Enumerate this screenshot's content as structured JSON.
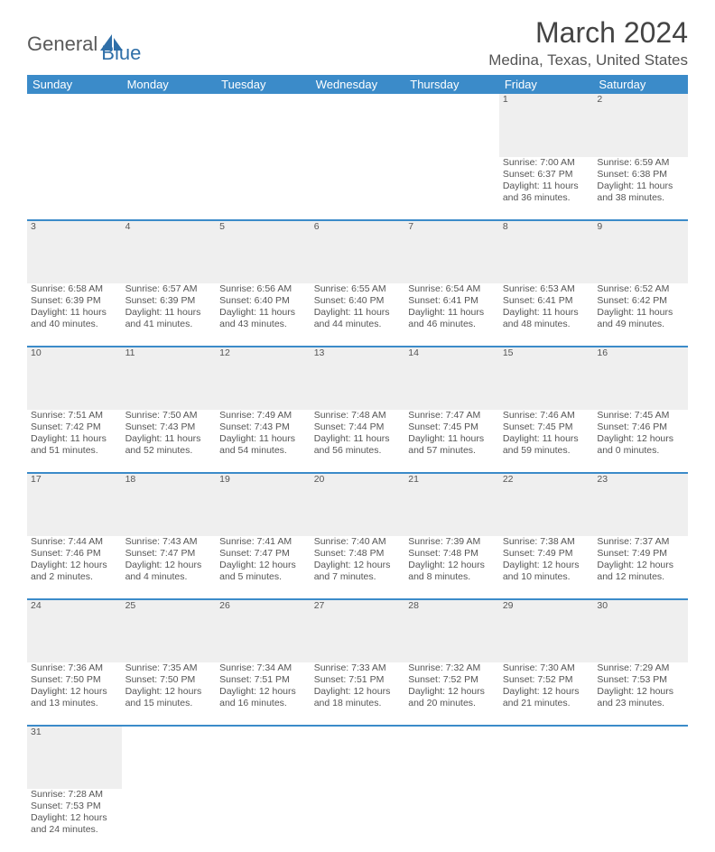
{
  "logo": {
    "text1": "General",
    "text2": "Blue"
  },
  "title": "March 2024",
  "location": "Medina, Texas, United States",
  "colors": {
    "header_bg": "#3b8bc9",
    "header_text": "#ffffff",
    "daynum_bg": "#efefef",
    "row_border": "#3b8bc9",
    "body_text": "#555555",
    "logo_gray": "#5a5a5a",
    "logo_blue": "#2f6fa8",
    "page_bg": "#ffffff"
  },
  "day_headers": [
    "Sunday",
    "Monday",
    "Tuesday",
    "Wednesday",
    "Thursday",
    "Friday",
    "Saturday"
  ],
  "weeks": [
    {
      "nums": [
        "",
        "",
        "",
        "",
        "",
        "1",
        "2"
      ],
      "cells": [
        [],
        [],
        [],
        [],
        [],
        [
          "Sunrise: 7:00 AM",
          "Sunset: 6:37 PM",
          "Daylight: 11 hours",
          "and 36 minutes."
        ],
        [
          "Sunrise: 6:59 AM",
          "Sunset: 6:38 PM",
          "Daylight: 11 hours",
          "and 38 minutes."
        ]
      ]
    },
    {
      "nums": [
        "3",
        "4",
        "5",
        "6",
        "7",
        "8",
        "9"
      ],
      "cells": [
        [
          "Sunrise: 6:58 AM",
          "Sunset: 6:39 PM",
          "Daylight: 11 hours",
          "and 40 minutes."
        ],
        [
          "Sunrise: 6:57 AM",
          "Sunset: 6:39 PM",
          "Daylight: 11 hours",
          "and 41 minutes."
        ],
        [
          "Sunrise: 6:56 AM",
          "Sunset: 6:40 PM",
          "Daylight: 11 hours",
          "and 43 minutes."
        ],
        [
          "Sunrise: 6:55 AM",
          "Sunset: 6:40 PM",
          "Daylight: 11 hours",
          "and 44 minutes."
        ],
        [
          "Sunrise: 6:54 AM",
          "Sunset: 6:41 PM",
          "Daylight: 11 hours",
          "and 46 minutes."
        ],
        [
          "Sunrise: 6:53 AM",
          "Sunset: 6:41 PM",
          "Daylight: 11 hours",
          "and 48 minutes."
        ],
        [
          "Sunrise: 6:52 AM",
          "Sunset: 6:42 PM",
          "Daylight: 11 hours",
          "and 49 minutes."
        ]
      ]
    },
    {
      "nums": [
        "10",
        "11",
        "12",
        "13",
        "14",
        "15",
        "16"
      ],
      "cells": [
        [
          "Sunrise: 7:51 AM",
          "Sunset: 7:42 PM",
          "Daylight: 11 hours",
          "and 51 minutes."
        ],
        [
          "Sunrise: 7:50 AM",
          "Sunset: 7:43 PM",
          "Daylight: 11 hours",
          "and 52 minutes."
        ],
        [
          "Sunrise: 7:49 AM",
          "Sunset: 7:43 PM",
          "Daylight: 11 hours",
          "and 54 minutes."
        ],
        [
          "Sunrise: 7:48 AM",
          "Sunset: 7:44 PM",
          "Daylight: 11 hours",
          "and 56 minutes."
        ],
        [
          "Sunrise: 7:47 AM",
          "Sunset: 7:45 PM",
          "Daylight: 11 hours",
          "and 57 minutes."
        ],
        [
          "Sunrise: 7:46 AM",
          "Sunset: 7:45 PM",
          "Daylight: 11 hours",
          "and 59 minutes."
        ],
        [
          "Sunrise: 7:45 AM",
          "Sunset: 7:46 PM",
          "Daylight: 12 hours",
          "and 0 minutes."
        ]
      ]
    },
    {
      "nums": [
        "17",
        "18",
        "19",
        "20",
        "21",
        "22",
        "23"
      ],
      "cells": [
        [
          "Sunrise: 7:44 AM",
          "Sunset: 7:46 PM",
          "Daylight: 12 hours",
          "and 2 minutes."
        ],
        [
          "Sunrise: 7:43 AM",
          "Sunset: 7:47 PM",
          "Daylight: 12 hours",
          "and 4 minutes."
        ],
        [
          "Sunrise: 7:41 AM",
          "Sunset: 7:47 PM",
          "Daylight: 12 hours",
          "and 5 minutes."
        ],
        [
          "Sunrise: 7:40 AM",
          "Sunset: 7:48 PM",
          "Daylight: 12 hours",
          "and 7 minutes."
        ],
        [
          "Sunrise: 7:39 AM",
          "Sunset: 7:48 PM",
          "Daylight: 12 hours",
          "and 8 minutes."
        ],
        [
          "Sunrise: 7:38 AM",
          "Sunset: 7:49 PM",
          "Daylight: 12 hours",
          "and 10 minutes."
        ],
        [
          "Sunrise: 7:37 AM",
          "Sunset: 7:49 PM",
          "Daylight: 12 hours",
          "and 12 minutes."
        ]
      ]
    },
    {
      "nums": [
        "24",
        "25",
        "26",
        "27",
        "28",
        "29",
        "30"
      ],
      "cells": [
        [
          "Sunrise: 7:36 AM",
          "Sunset: 7:50 PM",
          "Daylight: 12 hours",
          "and 13 minutes."
        ],
        [
          "Sunrise: 7:35 AM",
          "Sunset: 7:50 PM",
          "Daylight: 12 hours",
          "and 15 minutes."
        ],
        [
          "Sunrise: 7:34 AM",
          "Sunset: 7:51 PM",
          "Daylight: 12 hours",
          "and 16 minutes."
        ],
        [
          "Sunrise: 7:33 AM",
          "Sunset: 7:51 PM",
          "Daylight: 12 hours",
          "and 18 minutes."
        ],
        [
          "Sunrise: 7:32 AM",
          "Sunset: 7:52 PM",
          "Daylight: 12 hours",
          "and 20 minutes."
        ],
        [
          "Sunrise: 7:30 AM",
          "Sunset: 7:52 PM",
          "Daylight: 12 hours",
          "and 21 minutes."
        ],
        [
          "Sunrise: 7:29 AM",
          "Sunset: 7:53 PM",
          "Daylight: 12 hours",
          "and 23 minutes."
        ]
      ]
    },
    {
      "nums": [
        "31",
        "",
        "",
        "",
        "",
        "",
        ""
      ],
      "cells": [
        [
          "Sunrise: 7:28 AM",
          "Sunset: 7:53 PM",
          "Daylight: 12 hours",
          "and 24 minutes."
        ],
        [],
        [],
        [],
        [],
        [],
        []
      ]
    }
  ]
}
